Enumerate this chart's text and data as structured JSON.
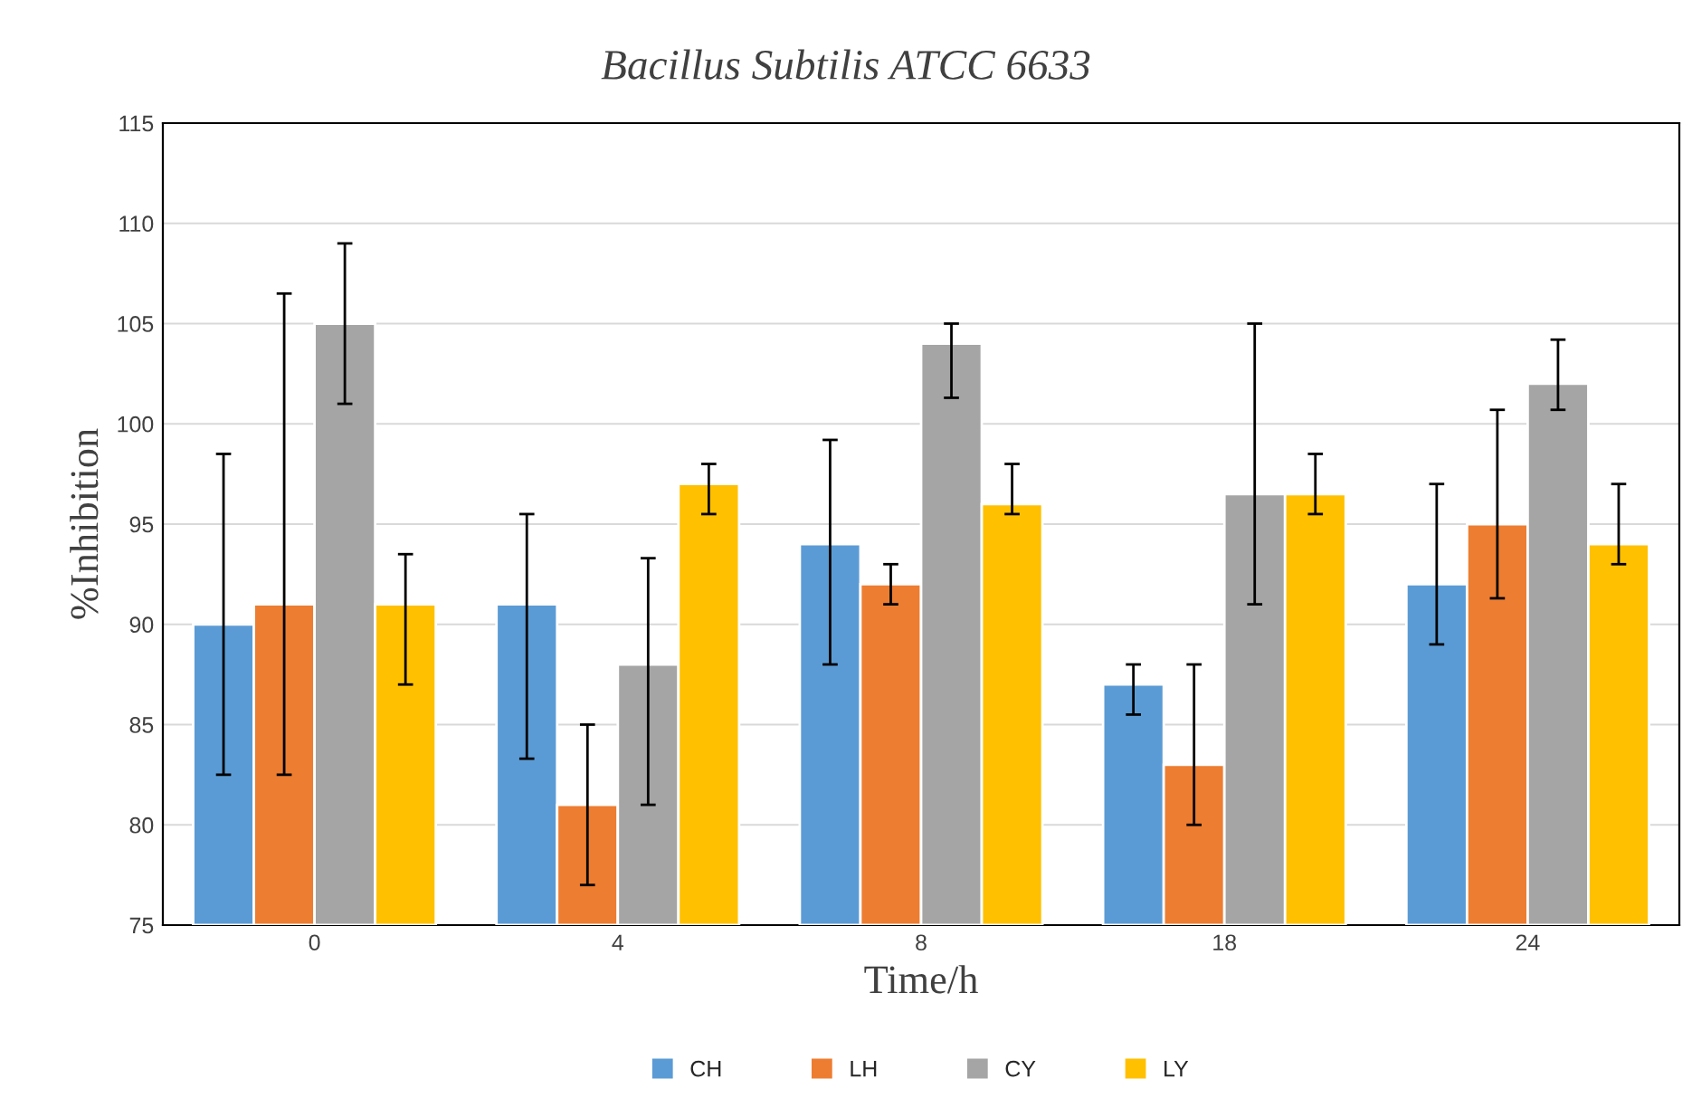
{
  "chart_data": {
    "type": "bar",
    "title": "Bacillus Subtilis ATCC 6633",
    "xlabel": "Time/h",
    "ylabel": "%Inhibition",
    "categories": [
      "0",
      "4",
      "8",
      "18",
      "24"
    ],
    "series": [
      {
        "name": "CH",
        "color": "#5b9bd5",
        "values": [
          90,
          91,
          94,
          87,
          92
        ],
        "errors": [
          [
            82.5,
            98.5
          ],
          [
            83.3,
            95.5
          ],
          [
            88,
            99.2
          ],
          [
            85.5,
            88
          ],
          [
            89,
            97
          ]
        ]
      },
      {
        "name": "LH",
        "color": "#ed7d31",
        "values": [
          91,
          81,
          92,
          83,
          95
        ],
        "errors": [
          [
            82.5,
            106.5
          ],
          [
            77,
            85
          ],
          [
            91,
            93
          ],
          [
            80,
            88
          ],
          [
            91.3,
            100.7
          ]
        ]
      },
      {
        "name": "CY",
        "color": "#a5a5a5",
        "values": [
          105,
          88,
          104,
          96.5,
          102
        ],
        "errors": [
          [
            101,
            109
          ],
          [
            81,
            93.3
          ],
          [
            101.3,
            105
          ],
          [
            91,
            105
          ],
          [
            100.7,
            104.2
          ]
        ]
      },
      {
        "name": "LY",
        "color": "#ffc000",
        "values": [
          91,
          97,
          96,
          96.5,
          94
        ],
        "errors": [
          [
            87,
            93.5
          ],
          [
            95.5,
            98
          ],
          [
            95.5,
            98
          ],
          [
            95.5,
            98.5
          ],
          [
            93,
            97
          ]
        ]
      }
    ],
    "ylim": [
      75,
      115
    ],
    "yticks": [
      75,
      80,
      85,
      90,
      95,
      100,
      105,
      110,
      115
    ],
    "grid": "y",
    "legend": "bottom"
  }
}
